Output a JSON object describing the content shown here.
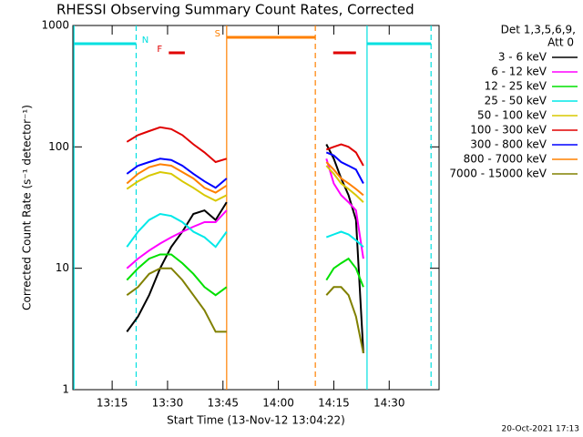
{
  "chart_data": {
    "type": "line",
    "title": "RHESSI Observing Summary Count Rates, Corrected",
    "xlabel": "Start Time (13-Nov-12 13:04:22)",
    "ylabel": "Corrected Count Rate (s⁻¹ detector⁻¹)",
    "legend_title": [
      "Det 1,3,5,6,9,",
      "Att 0"
    ],
    "footer": "20-Oct-2021 17:13",
    "log_y": true,
    "xlim": [
      "13:04:22",
      "14:43:30"
    ],
    "xticks": [
      "13:15",
      "13:30",
      "13:45",
      "14:00",
      "14:15",
      "14:30"
    ],
    "ylim": [
      1,
      1000
    ],
    "yticks": [
      1,
      10,
      100,
      1000
    ],
    "x": [
      "13:19",
      "13:22",
      "13:25",
      "13:28",
      "13:31",
      "13:34",
      "13:37",
      "13:40",
      "13:43",
      "13:46",
      "13:47",
      "14:12",
      "14:13",
      "14:15",
      "14:17",
      "14:19",
      "14:21",
      "14:23"
    ],
    "series": [
      {
        "name": "3 - 6 keV",
        "color": "#000000",
        "values": [
          3,
          4,
          6,
          10,
          15,
          20,
          28,
          30,
          25,
          35,
          null,
          null,
          105,
          80,
          55,
          40,
          25,
          2
        ]
      },
      {
        "name": "6 - 12 keV",
        "color": "#ff00ff",
        "values": [
          10,
          12,
          14,
          16,
          18,
          20,
          22,
          24,
          24,
          30,
          null,
          null,
          80,
          50,
          40,
          35,
          30,
          12
        ]
      },
      {
        "name": "12 - 25 keV",
        "color": "#00e000",
        "values": [
          8,
          10,
          12,
          13,
          13,
          11,
          9,
          7,
          6,
          7,
          null,
          null,
          8,
          10,
          11,
          12,
          10,
          7
        ]
      },
      {
        "name": "25 - 50 keV",
        "color": "#00e8e8",
        "values": [
          15,
          20,
          25,
          28,
          27,
          24,
          20,
          18,
          15,
          20,
          null,
          null,
          18,
          19,
          20,
          19,
          17,
          15
        ]
      },
      {
        "name": "50 - 100 keV",
        "color": "#d8c800",
        "values": [
          45,
          52,
          58,
          62,
          60,
          52,
          46,
          40,
          36,
          40,
          null,
          null,
          70,
          60,
          50,
          45,
          40,
          35
        ]
      },
      {
        "name": "100 - 300 keV",
        "color": "#e00000",
        "values": [
          110,
          125,
          135,
          145,
          140,
          125,
          105,
          90,
          75,
          80,
          null,
          null,
          95,
          100,
          105,
          100,
          90,
          70
        ]
      },
      {
        "name": "300 - 800 keV",
        "color": "#0000ff",
        "values": [
          60,
          70,
          75,
          80,
          78,
          70,
          60,
          52,
          46,
          55,
          null,
          null,
          90,
          85,
          75,
          70,
          65,
          50
        ]
      },
      {
        "name": "800 - 7000 keV",
        "color": "#ff8000",
        "values": [
          50,
          60,
          68,
          72,
          70,
          62,
          55,
          46,
          42,
          48,
          null,
          null,
          75,
          65,
          55,
          50,
          45,
          40
        ]
      },
      {
        "name": "7000 - 15000 keV",
        "color": "#808000",
        "values": [
          6,
          7,
          9,
          10,
          10,
          8,
          6,
          4.5,
          3,
          3,
          null,
          null,
          6,
          7,
          7,
          6,
          4,
          2
        ]
      }
    ],
    "intervals": [
      {
        "label": "N",
        "color": "#00e0e0",
        "spans": [
          [
            "13:04:40",
            "13:21:30"
          ],
          [
            "14:24:00",
            "14:41:20"
          ]
        ]
      },
      {
        "label": "S",
        "color": "#ff8000",
        "spans": [
          [
            "13:46:00",
            "14:10:00"
          ]
        ]
      },
      {
        "label": "F",
        "color": "#e00000",
        "spans": [
          [
            "13:30:20",
            "13:34:40"
          ],
          [
            "14:14:50",
            "14:21:00"
          ]
        ]
      }
    ]
  }
}
